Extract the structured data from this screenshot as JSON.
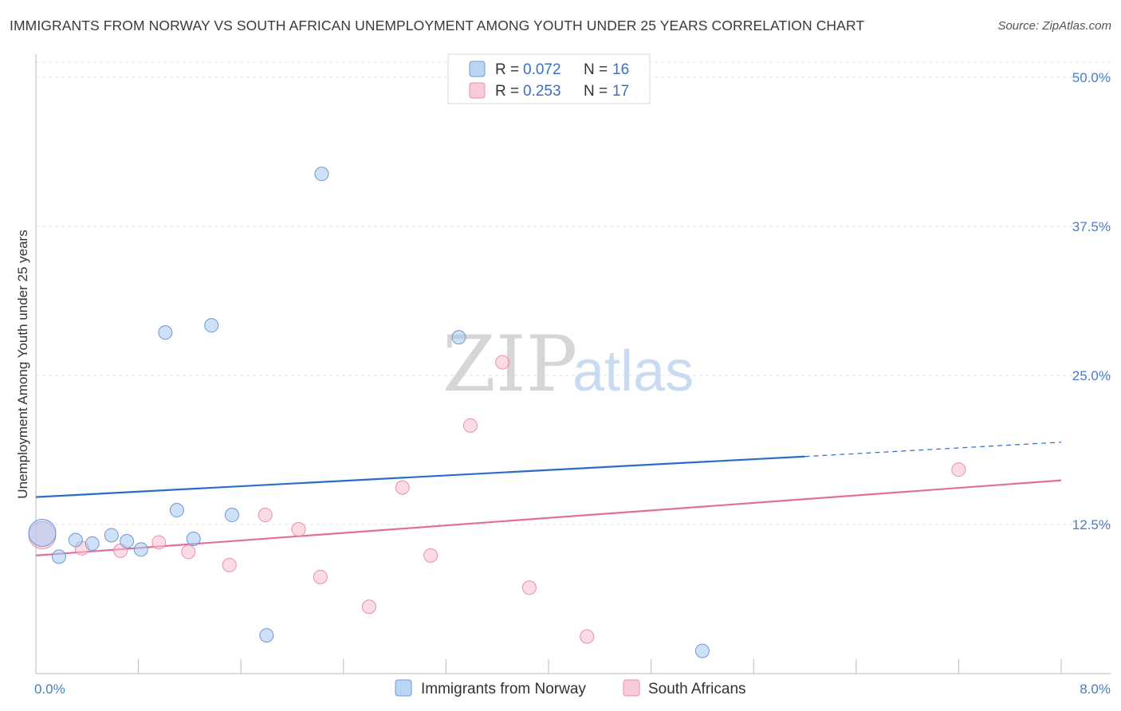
{
  "title": "IMMIGRANTS FROM NORWAY VS SOUTH AFRICAN UNEMPLOYMENT AMONG YOUTH UNDER 25 YEARS CORRELATION CHART",
  "source": "Source: ZipAtlas.com",
  "watermark": {
    "zip": "ZIP",
    "atlas": "atlas"
  },
  "legend_top": [
    {
      "r_label": "R =",
      "r_value": "0.072",
      "n_label": "N =",
      "n_value": "16"
    },
    {
      "r_label": "R =",
      "r_value": "0.253",
      "n_label": "N =",
      "n_value": "17"
    }
  ],
  "chart_data": {
    "type": "scatter",
    "title": "IMMIGRANTS FROM NORWAY VS SOUTH AFRICAN UNEMPLOYMENT AMONG YOUTH UNDER 25 YEARS CORRELATION CHART",
    "xlabel": "",
    "ylabel": "Unemployment Among Youth under 25 years",
    "xlim": [
      0,
      8
    ],
    "ylim": [
      0,
      50
    ],
    "x_tick_labels": [
      "0.0%",
      "8.0%"
    ],
    "y_ticks": [
      12.5,
      25.0,
      37.5,
      50.0
    ],
    "y_tick_labels": [
      "12.5%",
      "25.0%",
      "37.5%",
      "50.0%"
    ],
    "grid": true,
    "legend_position": "top-center",
    "series": [
      {
        "name": "Immigrants from Norway",
        "color": "#a8c8f0",
        "edge_color": "#6a9ad8",
        "line_color": "#2a6cc8",
        "points": [
          {
            "x": 0.05,
            "y": 11.8,
            "large": true
          },
          {
            "x": 0.18,
            "y": 9.8
          },
          {
            "x": 0.31,
            "y": 11.2
          },
          {
            "x": 0.44,
            "y": 10.9
          },
          {
            "x": 0.59,
            "y": 11.6
          },
          {
            "x": 0.71,
            "y": 11.1
          },
          {
            "x": 0.82,
            "y": 10.4
          },
          {
            "x": 1.01,
            "y": 28.6
          },
          {
            "x": 1.1,
            "y": 13.7
          },
          {
            "x": 1.23,
            "y": 11.3
          },
          {
            "x": 1.37,
            "y": 29.2
          },
          {
            "x": 1.53,
            "y": 13.3
          },
          {
            "x": 1.8,
            "y": 3.2
          },
          {
            "x": 2.23,
            "y": 41.9
          },
          {
            "x": 3.3,
            "y": 28.2
          },
          {
            "x": 5.2,
            "y": 1.9
          }
        ],
        "trend": {
          "x0": 0,
          "y0": 14.8,
          "x1": 6.0,
          "y1": 18.2,
          "dash_to_x": 8.0,
          "dash_to_y": 19.4
        }
      },
      {
        "name": "South Africans",
        "color": "#f8c0d0",
        "edge_color": "#e890a8",
        "line_color": "#e0709a",
        "points": [
          {
            "x": 0.05,
            "y": 11.6,
            "large": true
          },
          {
            "x": 0.36,
            "y": 10.5
          },
          {
            "x": 0.66,
            "y": 10.3
          },
          {
            "x": 0.96,
            "y": 11.0
          },
          {
            "x": 1.19,
            "y": 10.2
          },
          {
            "x": 1.51,
            "y": 9.1
          },
          {
            "x": 1.79,
            "y": 13.3
          },
          {
            "x": 2.05,
            "y": 12.1
          },
          {
            "x": 2.22,
            "y": 8.1
          },
          {
            "x": 2.6,
            "y": 5.6
          },
          {
            "x": 2.86,
            "y": 15.6
          },
          {
            "x": 3.08,
            "y": 9.9
          },
          {
            "x": 3.39,
            "y": 20.8
          },
          {
            "x": 3.64,
            "y": 26.1
          },
          {
            "x": 3.85,
            "y": 7.2
          },
          {
            "x": 4.3,
            "y": 3.1
          },
          {
            "x": 7.2,
            "y": 17.1
          }
        ],
        "trend": {
          "x0": 0,
          "y0": 9.9,
          "x1": 8.0,
          "y1": 16.2
        }
      }
    ]
  }
}
